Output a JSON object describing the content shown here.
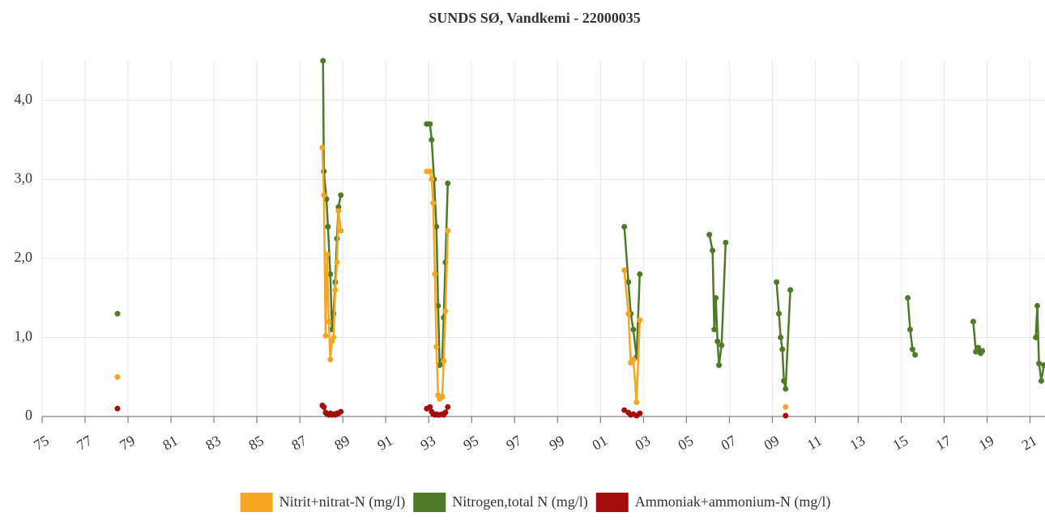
{
  "chart_data": {
    "type": "line",
    "title": "SUNDS SØ, Vandkemi - 22000035",
    "xlim": [
      1975,
      2021.7
    ],
    "xticks": [
      {
        "value": 1975,
        "label": "75"
      },
      {
        "value": 1977,
        "label": "77"
      },
      {
        "value": 1979,
        "label": "79"
      },
      {
        "value": 1981,
        "label": "81"
      },
      {
        "value": 1983,
        "label": "83"
      },
      {
        "value": 1985,
        "label": "85"
      },
      {
        "value": 1987,
        "label": "87"
      },
      {
        "value": 1989,
        "label": "89"
      },
      {
        "value": 1991,
        "label": "91"
      },
      {
        "value": 1993,
        "label": "93"
      },
      {
        "value": 1995,
        "label": "95"
      },
      {
        "value": 1997,
        "label": "97"
      },
      {
        "value": 1999,
        "label": "99"
      },
      {
        "value": 2001,
        "label": "01"
      },
      {
        "value": 2003,
        "label": "03"
      },
      {
        "value": 2005,
        "label": "05"
      },
      {
        "value": 2007,
        "label": "07"
      },
      {
        "value": 2009,
        "label": "09"
      },
      {
        "value": 2011,
        "label": "11"
      },
      {
        "value": 2013,
        "label": "13"
      },
      {
        "value": 2015,
        "label": "15"
      },
      {
        "value": 2017,
        "label": "17"
      },
      {
        "value": 2019,
        "label": "19"
      },
      {
        "value": 2021,
        "label": "21"
      }
    ],
    "ylim": [
      0,
      4.5
    ],
    "yticks": [
      0,
      {
        "value": 1,
        "label": "1,0"
      },
      {
        "value": 2,
        "label": "2,0"
      },
      {
        "value": 3,
        "label": "3,0"
      },
      {
        "value": 4,
        "label": "4,0"
      }
    ],
    "grid": true,
    "legend": "bottom",
    "series": [
      {
        "name": "Nitrit+nitrat-N (mg/l)",
        "color": "#f5a623",
        "x": [
          1978.51,
          null,
          1988.05,
          1988.12,
          1988.2,
          1988.27,
          1988.35,
          1988.42,
          1988.5,
          1988.57,
          1988.65,
          1988.73,
          1988.8,
          1988.91,
          null,
          1992.91,
          1993.06,
          1993.14,
          1993.21,
          1993.29,
          1993.36,
          1993.44,
          1993.51,
          1993.63,
          1993.7,
          1993.78,
          1993.89,
          null,
          2002.11,
          2002.3,
          2002.41,
          2002.53,
          2002.68,
          2002.83,
          null,
          2009.62
        ],
        "values": [
          0.5,
          null,
          3.4,
          2.8,
          1.02,
          2.05,
          1.2,
          0.72,
          0.95,
          1.0,
          1.6,
          1.95,
          2.6,
          2.35,
          null,
          3.1,
          3.1,
          3.0,
          2.7,
          1.8,
          0.88,
          0.27,
          0.22,
          0.25,
          0.7,
          1.33,
          2.35,
          null,
          1.85,
          1.3,
          0.68,
          0.72,
          0.18,
          1.22,
          null,
          0.12
        ]
      },
      {
        "name": "Nitrogen,total N (mg/l)",
        "color": "#4f7a28",
        "x": [
          1978.51,
          null,
          1988.08,
          1988.12,
          1988.24,
          1988.31,
          1988.42,
          1988.5,
          1988.57,
          1988.65,
          1988.73,
          1988.8,
          1988.91,
          null,
          1992.91,
          1993.06,
          1993.14,
          1993.25,
          1993.36,
          1993.44,
          1993.51,
          1993.63,
          1993.7,
          1993.78,
          1993.89,
          null,
          2002.11,
          2002.3,
          2002.41,
          2002.53,
          2002.68,
          2002.83,
          null,
          2006.07,
          2006.22,
          2006.3,
          2006.37,
          2006.45,
          2006.52,
          2006.64,
          2006.83,
          null,
          2009.2,
          2009.31,
          2009.39,
          2009.47,
          2009.54,
          2009.62,
          2009.84,
          null,
          2015.31,
          2015.42,
          2015.53,
          2015.65,
          null,
          2018.36,
          2018.48,
          2018.59,
          2018.7,
          2018.78,
          null,
          2021.27,
          2021.34,
          2021.42,
          2021.53,
          2021.65
        ],
        "values": [
          1.3,
          null,
          4.5,
          3.1,
          2.75,
          2.4,
          1.8,
          1.1,
          1.3,
          1.7,
          2.25,
          2.65,
          2.8,
          null,
          3.7,
          3.7,
          3.5,
          3.0,
          2.4,
          1.4,
          0.65,
          0.7,
          1.25,
          1.95,
          2.95,
          null,
          2.4,
          1.7,
          1.3,
          1.1,
          0.75,
          1.8,
          null,
          2.3,
          2.1,
          1.1,
          1.5,
          0.95,
          0.65,
          0.9,
          2.2,
          null,
          1.7,
          1.3,
          1.0,
          0.85,
          0.45,
          0.35,
          1.6,
          null,
          1.5,
          1.1,
          0.85,
          0.78,
          null,
          1.2,
          0.82,
          0.87,
          0.8,
          0.83,
          null,
          1.0,
          1.4,
          0.67,
          0.45,
          0.65
        ]
      },
      {
        "name": "Ammoniak+ammonium-N (mg/l)",
        "color": "#a50d0d",
        "x": [
          1978.51,
          null,
          1988.05,
          1988.12,
          1988.2,
          1988.27,
          1988.35,
          1988.42,
          1988.5,
          1988.57,
          1988.65,
          1988.73,
          1988.8,
          1988.91,
          null,
          1992.91,
          1993.06,
          1993.14,
          1993.21,
          1993.29,
          1993.36,
          1993.44,
          1993.51,
          1993.63,
          1993.7,
          1993.78,
          1993.89,
          null,
          2002.11,
          2002.3,
          2002.41,
          2002.53,
          2002.68,
          2002.83,
          null,
          2009.62
        ],
        "values": [
          0.1,
          null,
          0.14,
          0.12,
          0.05,
          0.03,
          0.02,
          0.04,
          0.02,
          0.03,
          0.02,
          0.04,
          0.04,
          0.06,
          null,
          0.1,
          0.12,
          0.06,
          0.03,
          0.02,
          0.03,
          0.02,
          0.02,
          0.03,
          0.02,
          0.05,
          0.12,
          null,
          0.08,
          0.05,
          0.02,
          0.03,
          0.01,
          0.04,
          null,
          0.01
        ]
      }
    ]
  }
}
